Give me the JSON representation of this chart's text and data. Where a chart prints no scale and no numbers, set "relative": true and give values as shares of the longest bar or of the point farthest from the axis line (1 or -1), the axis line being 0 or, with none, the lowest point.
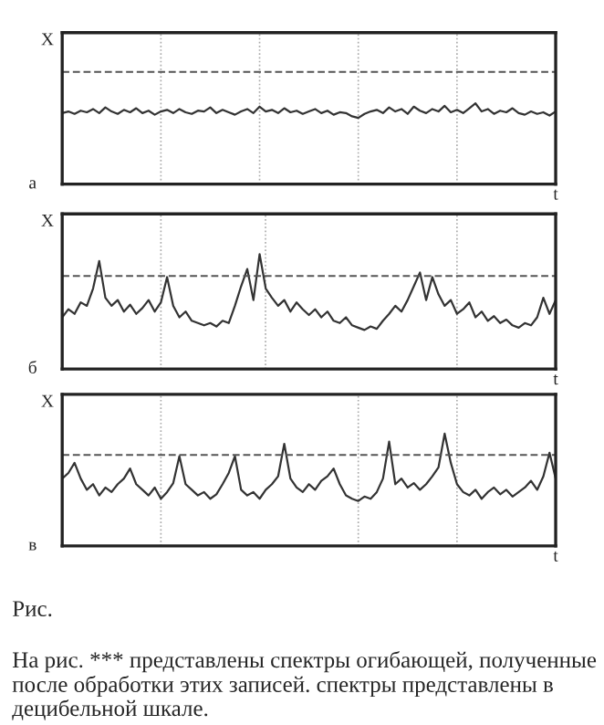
{
  "chart_data": [
    {
      "type": "line",
      "relative": true,
      "ylabel": "X",
      "xlabel": "t",
      "annotations": [
        "а"
      ],
      "color": "#333333",
      "categories": [
        null,
        null,
        null,
        null,
        null,
        null,
        null,
        null,
        null,
        null,
        null,
        null,
        null,
        null,
        null,
        null,
        null,
        null,
        null,
        null,
        null,
        null,
        null,
        null,
        null,
        null,
        null,
        null,
        null,
        null,
        null,
        null,
        null,
        null,
        null,
        null,
        null,
        null,
        null,
        null,
        null,
        null,
        null,
        null,
        null,
        null,
        null,
        null,
        null,
        null,
        null,
        null,
        null,
        null,
        null,
        null,
        null,
        null,
        null,
        null,
        null,
        null,
        null,
        null,
        null,
        null,
        null,
        null,
        null,
        null,
        null,
        null,
        null,
        null,
        null,
        null,
        null,
        null,
        null,
        null,
        null
      ],
      "values": [
        0.88,
        0.9,
        0.87,
        0.91,
        0.89,
        0.93,
        0.88,
        0.95,
        0.9,
        0.87,
        0.92,
        0.89,
        0.94,
        0.88,
        0.91,
        0.86,
        0.9,
        0.92,
        0.88,
        0.93,
        0.89,
        0.87,
        0.91,
        0.9,
        0.95,
        0.88,
        0.92,
        0.89,
        0.86,
        0.9,
        0.93,
        0.88,
        0.96,
        0.9,
        0.92,
        0.88,
        0.94,
        0.89,
        0.91,
        0.87,
        0.9,
        0.93,
        0.88,
        0.91,
        0.86,
        0.89,
        0.88,
        0.84,
        0.82,
        0.87,
        0.9,
        0.92,
        0.88,
        0.95,
        0.9,
        0.93,
        0.87,
        0.96,
        0.91,
        0.88,
        0.93,
        0.9,
        0.97,
        0.89,
        0.92,
        0.88,
        0.94,
        1.0,
        0.9,
        0.93,
        0.87,
        0.91,
        0.89,
        0.94,
        0.88,
        0.86,
        0.9,
        0.87,
        0.89,
        0.85,
        0.9
      ],
      "grid": "x",
      "ref_lines": [
        {
          "axis": "y",
          "value": 1.39,
          "line_style": "dashed"
        }
      ]
    },
    {
      "type": "line",
      "relative": true,
      "ylabel": "X",
      "xlabel": "t",
      "annotations": [
        "б"
      ],
      "color": "#333333",
      "categories": [
        null,
        null,
        null,
        null,
        null,
        null,
        null,
        null,
        null,
        null,
        null,
        null,
        null,
        null,
        null,
        null,
        null,
        null,
        null,
        null,
        null,
        null,
        null,
        null,
        null,
        null,
        null,
        null,
        null,
        null,
        null,
        null,
        null,
        null,
        null,
        null,
        null,
        null,
        null,
        null,
        null,
        null,
        null,
        null,
        null,
        null,
        null,
        null,
        null,
        null,
        null,
        null,
        null,
        null,
        null,
        null,
        null,
        null,
        null,
        null,
        null,
        null,
        null,
        null,
        null,
        null,
        null,
        null,
        null,
        null,
        null,
        null,
        null,
        null,
        null,
        null,
        null,
        null,
        null,
        null,
        null
      ],
      "values": [
        0.45,
        0.52,
        0.48,
        0.58,
        0.55,
        0.7,
        0.94,
        0.62,
        0.55,
        0.6,
        0.5,
        0.56,
        0.48,
        0.53,
        0.6,
        0.5,
        0.58,
        0.8,
        0.55,
        0.45,
        0.5,
        0.42,
        0.4,
        0.38,
        0.4,
        0.37,
        0.42,
        0.4,
        0.55,
        0.72,
        0.87,
        0.6,
        1.0,
        0.7,
        0.62,
        0.55,
        0.6,
        0.5,
        0.58,
        0.52,
        0.47,
        0.52,
        0.45,
        0.5,
        0.42,
        0.4,
        0.45,
        0.38,
        0.36,
        0.34,
        0.37,
        0.35,
        0.42,
        0.48,
        0.55,
        0.5,
        0.6,
        0.72,
        0.84,
        0.6,
        0.8,
        0.65,
        0.55,
        0.6,
        0.48,
        0.52,
        0.58,
        0.45,
        0.5,
        0.42,
        0.46,
        0.4,
        0.43,
        0.38,
        0.36,
        0.4,
        0.38,
        0.45,
        0.62,
        0.48,
        0.6
      ],
      "grid": "x",
      "ref_lines": [
        {
          "axis": "y",
          "value": 0.81,
          "line_style": "dashed"
        }
      ]
    },
    {
      "type": "line",
      "relative": true,
      "ylabel": "X",
      "xlabel": "t",
      "annotations": [
        "в",
        "Рис.",
        "На рис. *** представлены спектры огибающей, полученные после обработки этих записей. спектры представлены в децибельной шкале."
      ],
      "color": "#333333",
      "categories": [
        null,
        null,
        null,
        null,
        null,
        null,
        null,
        null,
        null,
        null,
        null,
        null,
        null,
        null,
        null,
        null,
        null,
        null,
        null,
        null,
        null,
        null,
        null,
        null,
        null,
        null,
        null,
        null,
        null,
        null,
        null,
        null,
        null,
        null,
        null,
        null,
        null,
        null,
        null,
        null,
        null,
        null,
        null,
        null,
        null,
        null,
        null,
        null,
        null,
        null,
        null,
        null,
        null,
        null,
        null,
        null,
        null,
        null,
        null,
        null,
        null,
        null,
        null,
        null,
        null,
        null,
        null,
        null,
        null,
        null,
        null,
        null,
        null,
        null,
        null,
        null,
        null,
        null,
        null,
        null,
        null
      ],
      "values": [
        0.6,
        0.65,
        0.74,
        0.6,
        0.5,
        0.55,
        0.45,
        0.52,
        0.48,
        0.55,
        0.6,
        0.69,
        0.55,
        0.5,
        0.45,
        0.52,
        0.42,
        0.48,
        0.56,
        0.8,
        0.55,
        0.5,
        0.45,
        0.48,
        0.42,
        0.46,
        0.55,
        0.65,
        0.8,
        0.5,
        0.45,
        0.48,
        0.42,
        0.5,
        0.55,
        0.62,
        0.91,
        0.6,
        0.52,
        0.48,
        0.55,
        0.5,
        0.58,
        0.62,
        0.69,
        0.55,
        0.45,
        0.42,
        0.4,
        0.44,
        0.42,
        0.48,
        0.6,
        0.93,
        0.55,
        0.6,
        0.52,
        0.56,
        0.5,
        0.55,
        0.62,
        0.7,
        1.0,
        0.74,
        0.55,
        0.48,
        0.45,
        0.5,
        0.42,
        0.48,
        0.52,
        0.46,
        0.5,
        0.44,
        0.48,
        0.52,
        0.58,
        0.5,
        0.62,
        0.83,
        0.6
      ],
      "grid": "x",
      "ref_lines": [
        {
          "axis": "y",
          "value": 0.81,
          "line_style": "dashed"
        }
      ]
    }
  ]
}
